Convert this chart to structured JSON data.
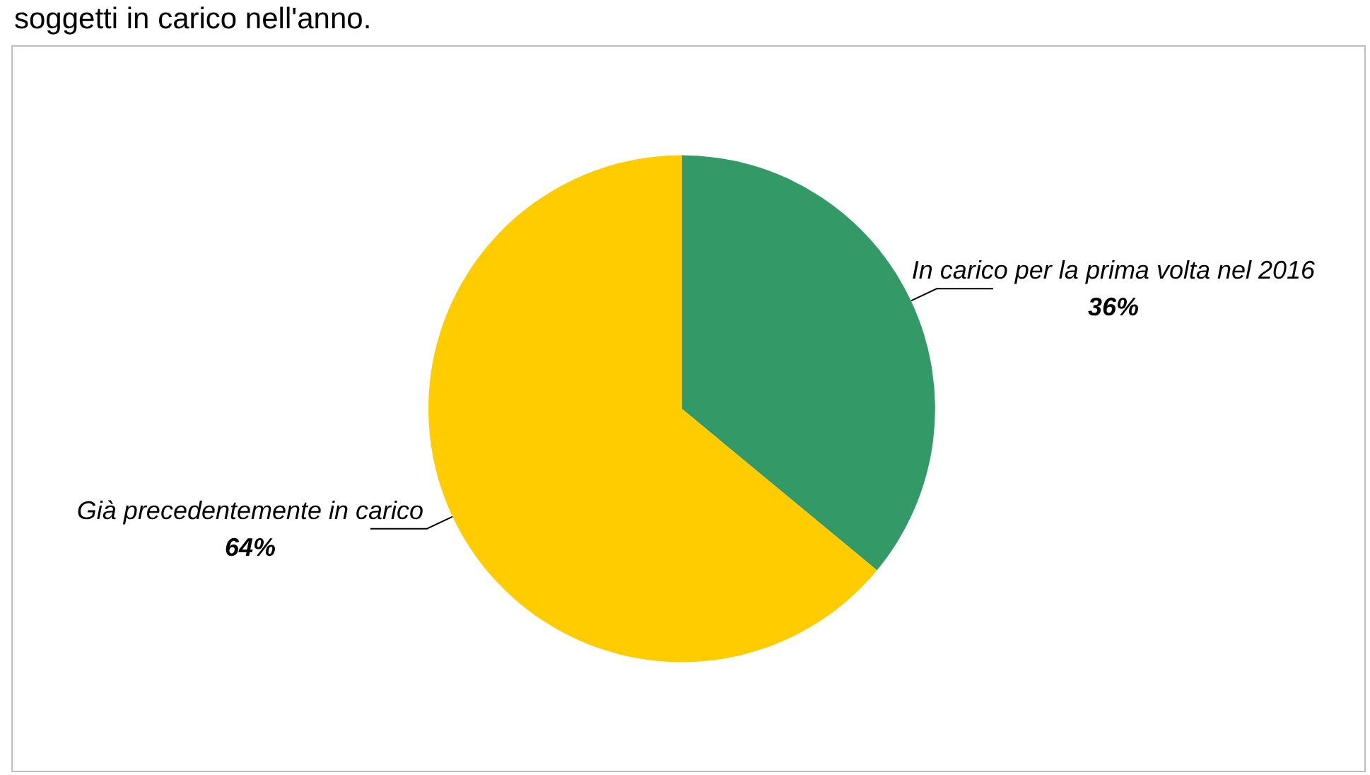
{
  "chart_data": {
    "type": "pie",
    "title": "soggetti in carico nell'anno.",
    "categories": [
      "In carico per la prima volta nel 2016",
      "Già precedentemente in carico"
    ],
    "values": [
      36,
      64
    ],
    "colors": [
      "#339966",
      "#ffcc00"
    ],
    "value_labels": [
      "36%",
      "64%"
    ],
    "legend": false
  }
}
